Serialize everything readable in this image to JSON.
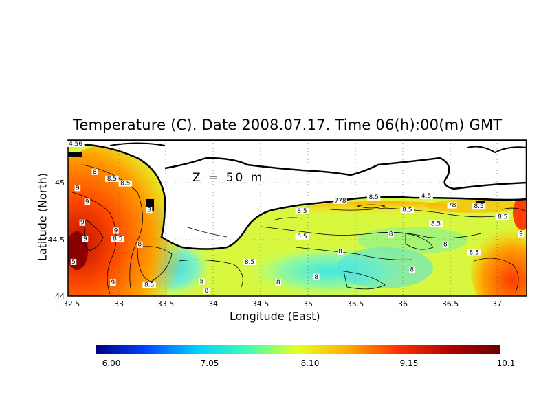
{
  "title": "Temperature (C). Date 2008.07.17. Time 06(h):00(m) GMT",
  "depth_label": "Z = 50 m",
  "x_axis": {
    "label": "Longitude (East)",
    "range": [
      32.5,
      37.3
    ],
    "ticks": [
      "32.5",
      "33",
      "33.5",
      "34",
      "34.5",
      "35",
      "35.5",
      "36",
      "36.5",
      "37"
    ]
  },
  "y_axis": {
    "label": "Latitude (North)",
    "range": [
      44.0,
      45.35
    ],
    "ticks": [
      "44",
      "44.5",
      "45"
    ]
  },
  "colorbar": {
    "labels": [
      "6.00",
      "7.05",
      "8.10",
      "9.15",
      "10.1"
    ],
    "min": 6.0,
    "max": 10.1,
    "colors": [
      "#00007f",
      "#0040ff",
      "#00d0ff",
      "#40ffb0",
      "#e8ff20",
      "#ffb000",
      "#ff3000",
      "#b00000",
      "#6a0000"
    ]
  },
  "contour_labels": [
    {
      "text": "8",
      "lon": 32.78,
      "lat": 45.06
    },
    {
      "text": "8.5",
      "lon": 32.96,
      "lat": 45.0
    },
    {
      "text": "9",
      "lon": 32.6,
      "lat": 44.92
    },
    {
      "text": "8.5",
      "lon": 33.1,
      "lat": 44.96
    },
    {
      "text": "9",
      "lon": 32.7,
      "lat": 44.8
    },
    {
      "text": "8",
      "lon": 33.35,
      "lat": 44.73
    },
    {
      "text": "9",
      "lon": 32.65,
      "lat": 44.62
    },
    {
      "text": "9",
      "lon": 33.0,
      "lat": 44.55
    },
    {
      "text": "9",
      "lon": 32.68,
      "lat": 44.48
    },
    {
      "text": "8.5",
      "lon": 33.02,
      "lat": 44.48
    },
    {
      "text": "8",
      "lon": 33.25,
      "lat": 44.43
    },
    {
      "text": "5",
      "lon": 32.53,
      "lat": 44.28
    },
    {
      "text": "9",
      "lon": 32.97,
      "lat": 44.1
    },
    {
      "text": "8.5",
      "lon": 33.35,
      "lat": 44.08
    },
    {
      "text": "8",
      "lon": 33.9,
      "lat": 44.11
    },
    {
      "text": "8",
      "lon": 33.95,
      "lat": 44.03
    },
    {
      "text": "8.5",
      "lon": 34.4,
      "lat": 44.28
    },
    {
      "text": "8",
      "lon": 34.7,
      "lat": 44.1
    },
    {
      "text": "8.5",
      "lon": 34.95,
      "lat": 44.5
    },
    {
      "text": "8.5",
      "lon": 34.95,
      "lat": 44.72
    },
    {
      "text": "8",
      "lon": 35.1,
      "lat": 44.15
    },
    {
      "text": "8",
      "lon": 35.35,
      "lat": 44.37
    },
    {
      "text": "8.5",
      "lon": 35.7,
      "lat": 44.84
    },
    {
      "text": "8.5",
      "lon": 36.05,
      "lat": 44.73
    },
    {
      "text": "8",
      "lon": 35.88,
      "lat": 44.52
    },
    {
      "text": "8",
      "lon": 36.1,
      "lat": 44.21
    },
    {
      "text": "8",
      "lon": 36.45,
      "lat": 44.43
    },
    {
      "text": "8.5",
      "lon": 36.35,
      "lat": 44.61
    },
    {
      "text": "4.5",
      "lon": 36.25,
      "lat": 44.85
    },
    {
      "text": "8.5",
      "lon": 36.8,
      "lat": 44.76
    },
    {
      "text": "8.5",
      "lon": 37.05,
      "lat": 44.67
    },
    {
      "text": "8.5",
      "lon": 36.75,
      "lat": 44.36
    },
    {
      "text": "9",
      "lon": 37.25,
      "lat": 44.52
    },
    {
      "text": "778",
      "lon": 35.35,
      "lat": 44.81
    },
    {
      "text": "78",
      "lon": 36.52,
      "lat": 44.77
    },
    {
      "text": "4.56",
      "lon": 32.58,
      "lat": 45.33
    }
  ]
}
